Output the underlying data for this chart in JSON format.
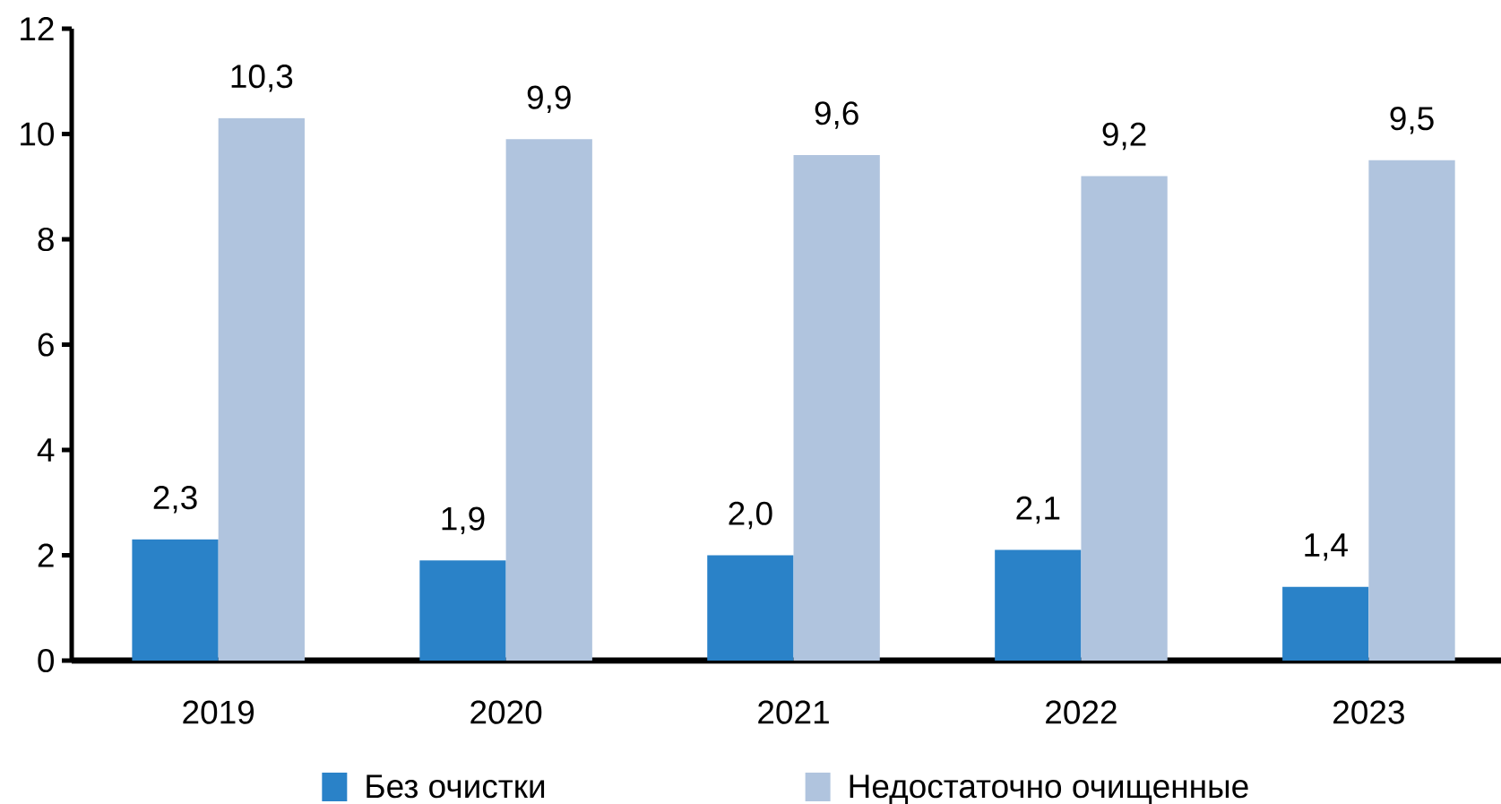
{
  "chart_data": {
    "type": "bar",
    "categories": [
      "2019",
      "2020",
      "2021",
      "2022",
      "2023"
    ],
    "series": [
      {
        "name": "Без очистки",
        "color": "#2a82c8",
        "values": [
          2.3,
          1.9,
          2.0,
          2.1,
          1.4
        ],
        "value_labels": [
          "2,3",
          "1,9",
          "2,0",
          "2,1",
          "1,4"
        ]
      },
      {
        "name": "Недостаточно очищенные",
        "color": "#b0c4de",
        "values": [
          10.3,
          9.9,
          9.6,
          9.2,
          9.5
        ],
        "value_labels": [
          "10,3",
          "9,9",
          "9,6",
          "9,2",
          "9,5"
        ]
      }
    ],
    "ylim": [
      0,
      12
    ],
    "yticks": [
      0,
      2,
      4,
      6,
      8,
      10,
      12
    ],
    "legend": "bottom"
  }
}
